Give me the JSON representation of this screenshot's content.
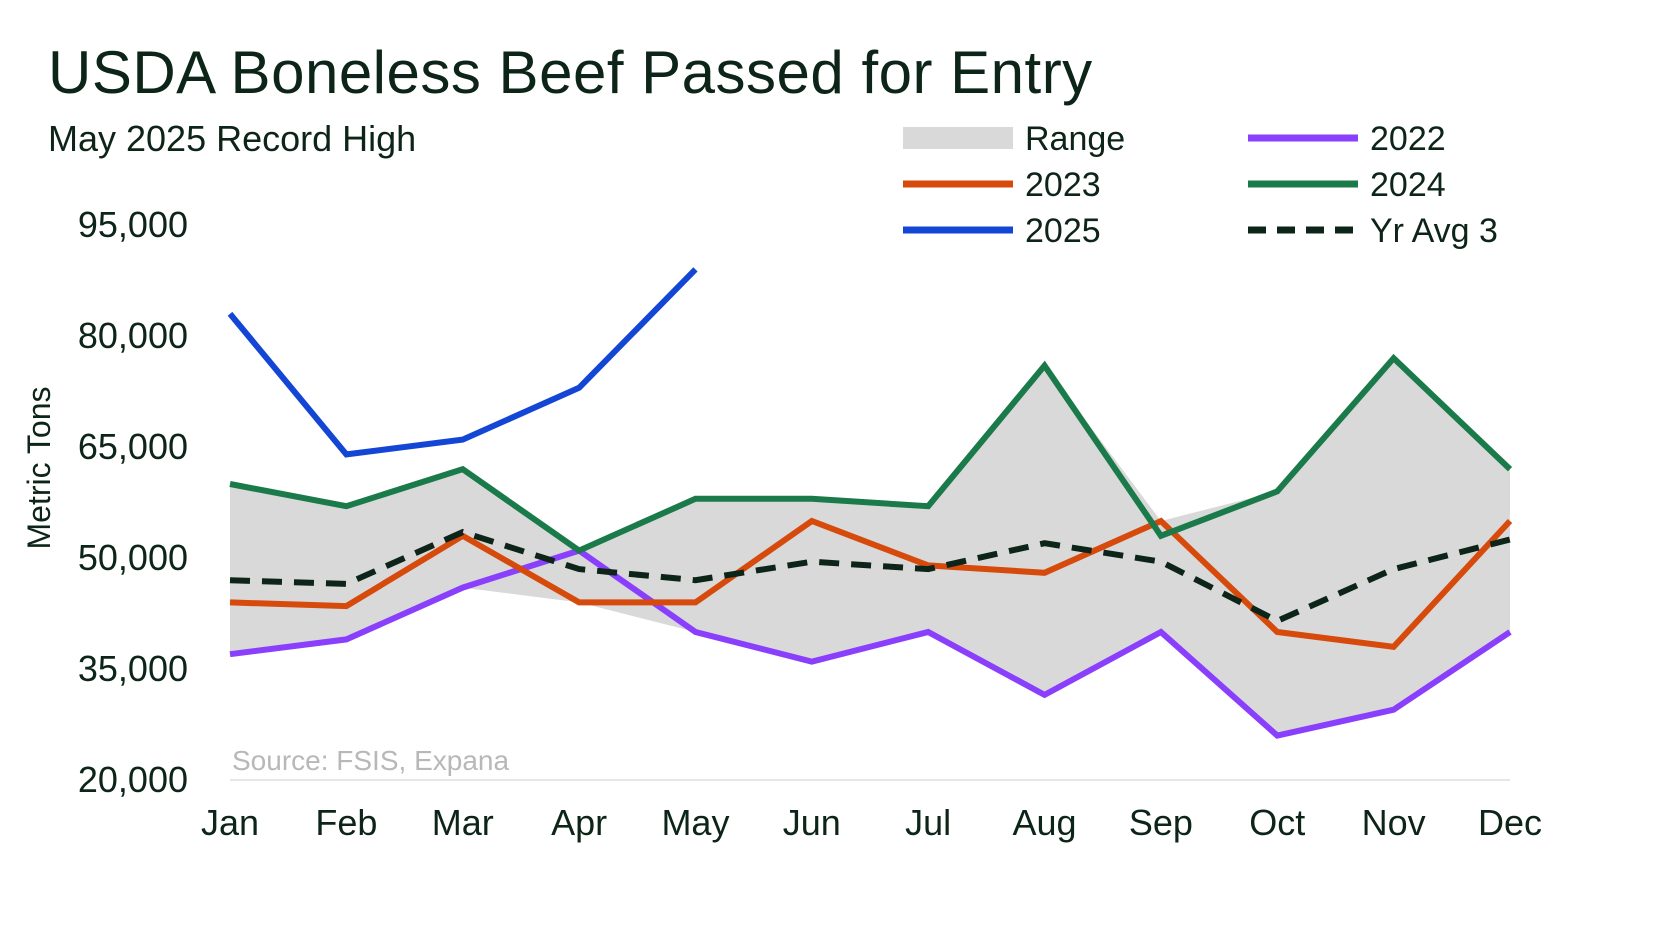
{
  "chart_data": {
    "type": "line",
    "title": "USDA Boneless Beef Passed for Entry",
    "subtitle": "May 2025 Record High",
    "ylabel": "Metric Tons",
    "source": "Source: FSIS, Expana",
    "categories": [
      "Jan",
      "Feb",
      "Mar",
      "Apr",
      "May",
      "Jun",
      "Jul",
      "Aug",
      "Sep",
      "Oct",
      "Nov",
      "Dec"
    ],
    "y_ticks": [
      20000,
      35000,
      50000,
      65000,
      80000,
      95000
    ],
    "y_tick_labels": [
      "20,000",
      "35,000",
      "50,000",
      "65,000",
      "80,000",
      "95,000"
    ],
    "ylim": [
      20000,
      95000
    ],
    "legend_placement": "top-right",
    "range": {
      "name": "Range",
      "color": "#d9d9d9",
      "low": [
        37000,
        39000,
        46000,
        44000,
        40000,
        36000,
        40000,
        31500,
        40000,
        26000,
        29500,
        40000
      ],
      "high": [
        60000,
        57000,
        62000,
        51000,
        58000,
        58000,
        57000,
        76000,
        55000,
        59000,
        77000,
        62000
      ]
    },
    "series": [
      {
        "name": "2022",
        "color": "#8a3ffc",
        "dashed": false,
        "values": [
          37000,
          39000,
          46000,
          51000,
          40000,
          36000,
          40000,
          31500,
          40000,
          26000,
          29500,
          40000
        ]
      },
      {
        "name": "2023",
        "color": "#d64a0b",
        "dashed": false,
        "values": [
          44000,
          43500,
          53000,
          44000,
          44000,
          55000,
          49000,
          48000,
          55000,
          40000,
          38000,
          55000
        ]
      },
      {
        "name": "2024",
        "color": "#1a7a4a",
        "dashed": false,
        "values": [
          60000,
          57000,
          62000,
          51000,
          58000,
          58000,
          57000,
          76000,
          53000,
          59000,
          77000,
          62000
        ]
      },
      {
        "name": "2025",
        "color": "#1446d6",
        "dashed": false,
        "values": [
          83000,
          64000,
          66000,
          73000,
          89000,
          null,
          null,
          null,
          null,
          null,
          null,
          null
        ]
      },
      {
        "name": "Yr Avg 3",
        "color": "#0d2418",
        "dashed": true,
        "values": [
          47000,
          46500,
          53500,
          48500,
          47000,
          49500,
          48500,
          52000,
          49500,
          41500,
          48500,
          52500
        ]
      }
    ],
    "legend_order": [
      "Range",
      "2022",
      "2023",
      "2024",
      "2025",
      "Yr Avg 3"
    ]
  }
}
